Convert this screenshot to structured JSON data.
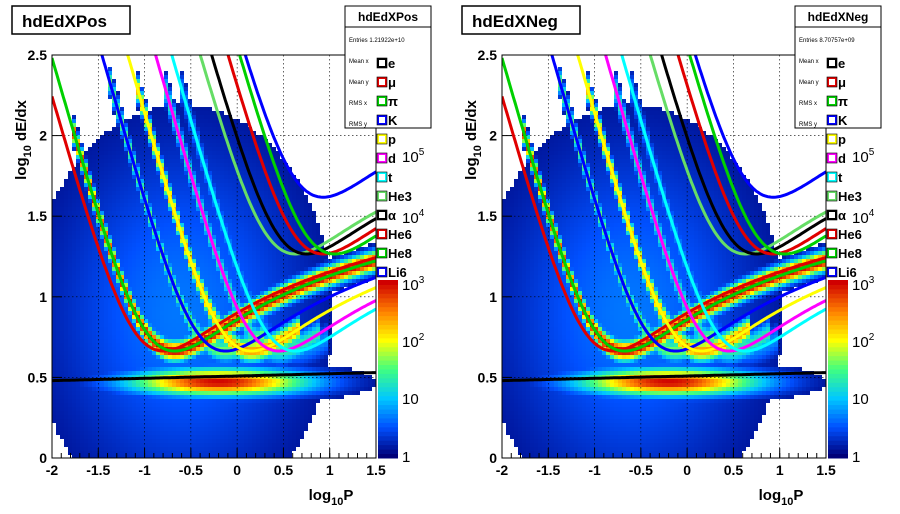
{
  "chart_data": [
    {
      "type": "heatmap",
      "title": "hdEdXPos",
      "xlabel": "log10P",
      "ylabel": "log10 dE/dx",
      "xlim": [
        -2,
        1.5
      ],
      "ylim": [
        0,
        2.5
      ],
      "x_ticks": [
        "-2",
        "-1.5",
        "-1",
        "-0.5",
        "0",
        "0.5",
        "1",
        "1.5"
      ],
      "y_ticks": [
        "0",
        "0.5",
        "1",
        "1.5",
        "2",
        "2.5"
      ],
      "grid": true,
      "colorbar": {
        "scale": "log",
        "labels": [
          "1",
          "10",
          "10^2",
          "10^3",
          "10^4",
          "10^5"
        ]
      },
      "stats": {
        "title": "hdEdXPos",
        "entries": "Entries  1.21922e+10",
        "rows": [
          "Mean x",
          "Mean y",
          "RMS x",
          "RMS y"
        ]
      },
      "legend": [
        "e",
        "μ",
        "π",
        "K",
        "p",
        "d",
        "t",
        "He3",
        "α",
        "He6",
        "He8",
        "Li6"
      ],
      "legend_placement": "right"
    },
    {
      "type": "heatmap",
      "title": "hdEdXNeg",
      "xlabel": "log10P",
      "ylabel": "log10 dE/dx",
      "xlim": [
        -2,
        1.5
      ],
      "ylim": [
        0,
        2.5
      ],
      "x_ticks": [
        "-2",
        "-1.5",
        "-1",
        "-0.5",
        "0",
        "0.5",
        "1",
        "1.5"
      ],
      "y_ticks": [
        "0",
        "0.5",
        "1",
        "1.5",
        "2",
        "2.5"
      ],
      "grid": true,
      "colorbar": {
        "scale": "log",
        "labels": [
          "1",
          "10",
          "10^2",
          "10^3",
          "10^4",
          "10^5"
        ]
      },
      "stats": {
        "title": "hdEdXNeg",
        "entries": "Entries  8.70757e+09",
        "rows": [
          "Mean x",
          "Mean y",
          "RMS x",
          "RMS y"
        ]
      },
      "legend": [
        "e",
        "μ",
        "π",
        "K",
        "p",
        "d",
        "t",
        "He3",
        "α",
        "He6",
        "He8",
        "Li6"
      ],
      "legend_placement": "right"
    }
  ],
  "curves": [
    {
      "name": "e",
      "color": "#000000",
      "mass": 0.000511,
      "charge": 1
    },
    {
      "name": "μ",
      "color": "#e00000",
      "mass": 0.1057,
      "charge": 1
    },
    {
      "name": "π",
      "color": "#00d000",
      "mass": 0.1396,
      "charge": 1
    },
    {
      "name": "K",
      "color": "#0000ff",
      "mass": 0.4937,
      "charge": 1
    },
    {
      "name": "p",
      "color": "#ffff00",
      "mass": 0.9383,
      "charge": 1
    },
    {
      "name": "d",
      "color": "#ff00ff",
      "mass": 1.8756,
      "charge": 1
    },
    {
      "name": "t",
      "color": "#00ffff",
      "mass": 2.8089,
      "charge": 1
    },
    {
      "name": "He3",
      "color": "#66dd66",
      "mass": 2.8084,
      "charge": 2
    },
    {
      "name": "α",
      "color": "#000000",
      "mass": 3.7274,
      "charge": 2
    },
    {
      "name": "He6",
      "color": "#e00000",
      "mass": 5.6055,
      "charge": 2
    },
    {
      "name": "He8",
      "color": "#00d000",
      "mass": 7.4829,
      "charge": 2
    },
    {
      "name": "Li6",
      "color": "#0000ff",
      "mass": 5.6015,
      "charge": 3
    }
  ],
  "colors": {
    "heat": [
      "#000078",
      "#0050ff",
      "#00c8ff",
      "#40ff80",
      "#ffff00",
      "#ff8000",
      "#d00000"
    ]
  }
}
